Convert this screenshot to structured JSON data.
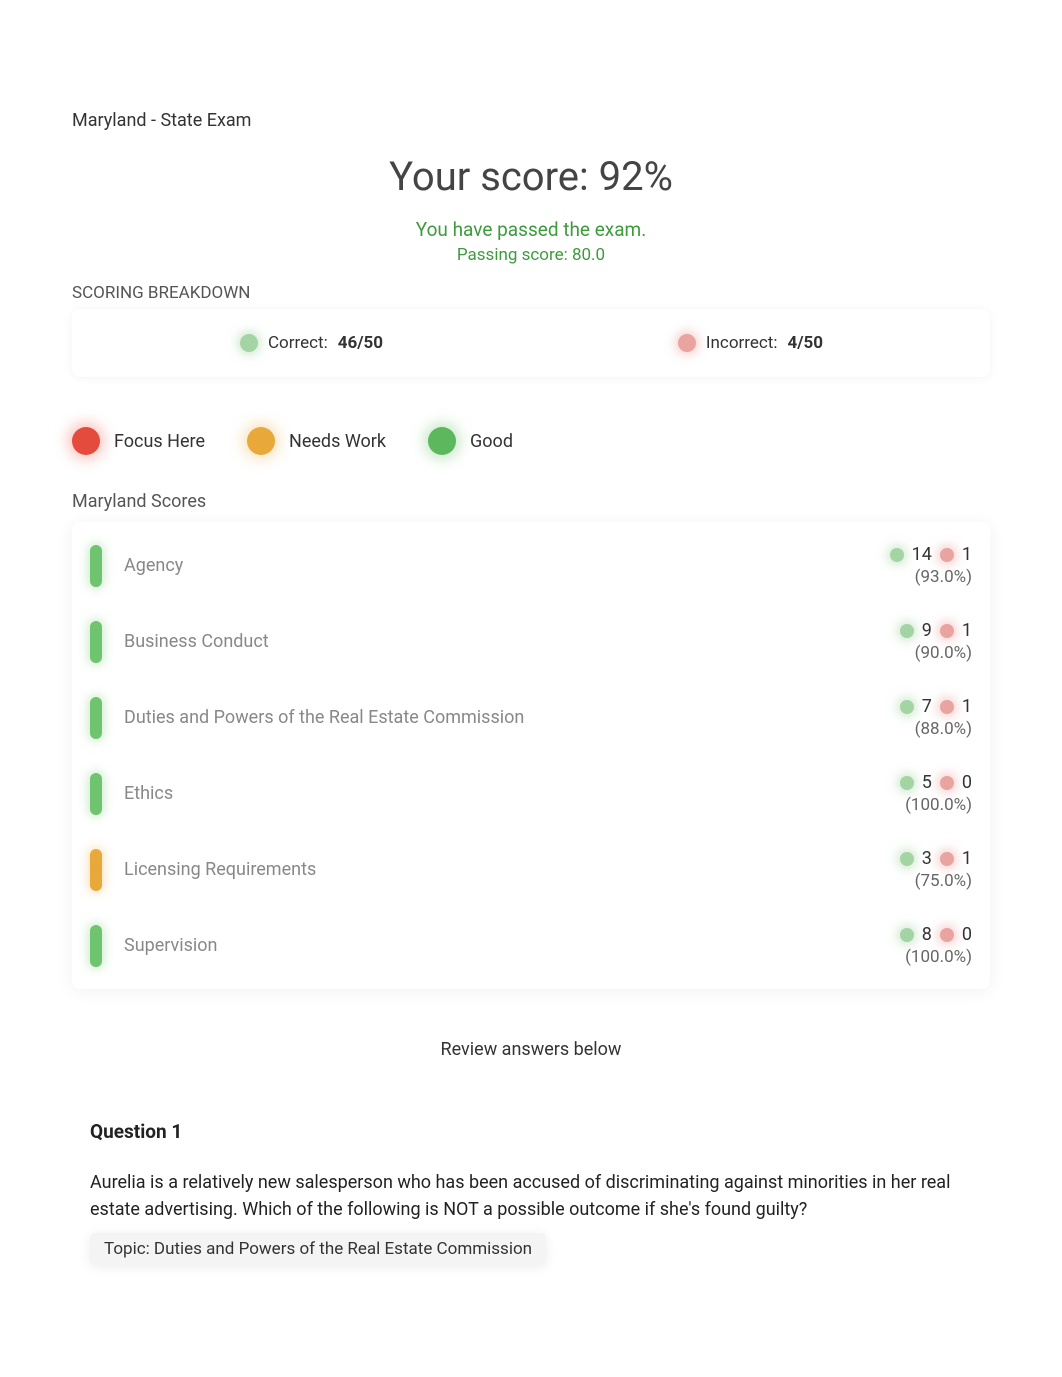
{
  "exam_title": "Maryland - State Exam",
  "score_line": "Your score: 92%",
  "pass_message": "You have passed the exam.",
  "passing_score_line": "Passing score: 80.0",
  "breakdown": {
    "label": "SCORING BREAKDOWN",
    "correct": {
      "label": "Correct:",
      "value": "46/50"
    },
    "incorrect": {
      "label": "Incorrect:",
      "value": "4/50"
    }
  },
  "legend": {
    "focus": "Focus Here",
    "needs": "Needs Work",
    "good": "Good"
  },
  "colors": {
    "red": "#e44b3c",
    "orange": "#e8a83a",
    "green": "#5cb85c",
    "soft_green": "#a4d4a4",
    "soft_red": "#e9a4a0",
    "pass_text": "#3d9b3d"
  },
  "section_title": "Maryland Scores",
  "topics": [
    {
      "name": "Agency",
      "status": "green",
      "correct": "14",
      "incorrect": "1",
      "pct": "(93.0%)"
    },
    {
      "name": "Business Conduct",
      "status": "green",
      "correct": "9",
      "incorrect": "1",
      "pct": "(90.0%)"
    },
    {
      "name": "Duties and Powers of the Real Estate Commission",
      "status": "green",
      "correct": "7",
      "incorrect": "1",
      "pct": "(88.0%)"
    },
    {
      "name": "Ethics",
      "status": "green",
      "correct": "5",
      "incorrect": "0",
      "pct": "(100.0%)"
    },
    {
      "name": "Licensing Requirements",
      "status": "orange",
      "correct": "3",
      "incorrect": "1",
      "pct": "(75.0%)"
    },
    {
      "name": "Supervision",
      "status": "green",
      "correct": "8",
      "incorrect": "0",
      "pct": "(100.0%)"
    }
  ],
  "review_line": "Review answers below",
  "question": {
    "title": "Question 1",
    "text": "Aurelia is a relatively new salesperson who has been accused of discriminating against minorities in her real estate advertising. Which of the following is NOT a possible outcome if she's found guilty?",
    "topic_chip": "Topic: Duties and Powers of the Real Estate Commission"
  }
}
